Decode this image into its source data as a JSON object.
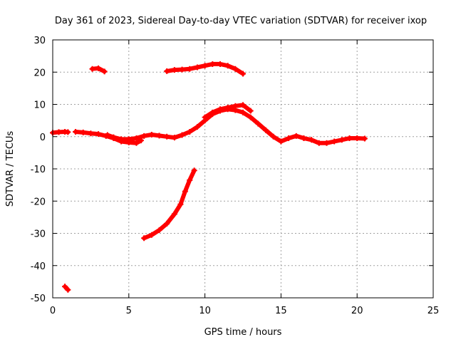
{
  "chart_data": {
    "type": "scatter",
    "title": "Day 361 of 2023, Sidereal Day-to-day VTEC variation (SDTVAR) for receiver ixop",
    "xlabel": "GPS time / hours",
    "ylabel": "SDTVAR / TECUs",
    "xlim": [
      0,
      25
    ],
    "ylim": [
      -50,
      30
    ],
    "x_ticks": [
      0,
      5,
      10,
      15,
      20,
      25
    ],
    "y_ticks": [
      -50,
      -40,
      -30,
      -20,
      -10,
      0,
      10,
      20,
      30
    ],
    "x_tick_labels": [
      "0",
      "5",
      "10",
      "15",
      "20",
      "25"
    ],
    "y_tick_labels": [
      "-50",
      "-40",
      "-30",
      "-20",
      "-10",
      "0",
      "10",
      "20",
      "30"
    ],
    "grid": true,
    "color": "#ff0000",
    "series": [
      {
        "name": "segment-1",
        "points": [
          [
            0.0,
            1.2
          ],
          [
            0.4,
            1.4
          ],
          [
            0.8,
            1.5
          ],
          [
            1.0,
            1.4
          ]
        ]
      },
      {
        "name": "segment-2",
        "points": [
          [
            1.5,
            1.5
          ],
          [
            2.0,
            1.3
          ],
          [
            2.5,
            1.0
          ],
          [
            3.0,
            0.8
          ],
          [
            3.5,
            0.2
          ],
          [
            4.0,
            -0.5
          ],
          [
            4.5,
            -1.5
          ],
          [
            5.0,
            -1.8
          ],
          [
            5.5,
            -2.0
          ],
          [
            5.8,
            -1.2
          ]
        ]
      },
      {
        "name": "segment-3",
        "points": [
          [
            3.6,
            0.5
          ],
          [
            4.0,
            -0.2
          ],
          [
            4.5,
            -0.8
          ],
          [
            5.0,
            -0.8
          ],
          [
            5.5,
            -0.5
          ],
          [
            6.0,
            0.2
          ],
          [
            6.5,
            0.6
          ],
          [
            7.0,
            0.3
          ],
          [
            7.5,
            0.0
          ],
          [
            8.0,
            -0.3
          ],
          [
            8.5,
            0.5
          ],
          [
            9.0,
            1.5
          ],
          [
            9.5,
            3.0
          ],
          [
            10.0,
            5.0
          ],
          [
            10.5,
            7.0
          ],
          [
            11.0,
            8.0
          ],
          [
            11.5,
            8.5
          ],
          [
            12.0,
            8.2
          ],
          [
            12.5,
            7.5
          ],
          [
            13.0,
            6.0
          ],
          [
            13.5,
            4.0
          ],
          [
            14.0,
            2.0
          ],
          [
            14.5,
            0.0
          ],
          [
            15.0,
            -1.5
          ],
          [
            15.5,
            -0.5
          ],
          [
            16.0,
            0.2
          ],
          [
            16.5,
            -0.5
          ],
          [
            17.0,
            -1.0
          ],
          [
            17.5,
            -2.0
          ],
          [
            18.0,
            -2.0
          ],
          [
            18.5,
            -1.5
          ],
          [
            19.0,
            -1.0
          ],
          [
            19.5,
            -0.5
          ],
          [
            20.0,
            -0.5
          ],
          [
            20.5,
            -0.6
          ]
        ]
      },
      {
        "name": "segment-4",
        "points": [
          [
            10.0,
            6.0
          ],
          [
            10.5,
            7.5
          ],
          [
            11.0,
            8.5
          ],
          [
            11.5,
            9.0
          ],
          [
            12.0,
            9.5
          ],
          [
            12.5,
            9.8
          ],
          [
            13.0,
            8.0
          ]
        ]
      },
      {
        "name": "segment-5",
        "points": [
          [
            2.6,
            21.0
          ],
          [
            3.0,
            21.2
          ],
          [
            3.4,
            20.2
          ]
        ]
      },
      {
        "name": "segment-6",
        "points": [
          [
            7.5,
            20.3
          ],
          [
            8.0,
            20.7
          ],
          [
            8.5,
            20.8
          ],
          [
            9.0,
            21.0
          ],
          [
            9.5,
            21.5
          ],
          [
            10.0,
            22.0
          ],
          [
            10.5,
            22.5
          ],
          [
            11.0,
            22.5
          ],
          [
            11.5,
            22.0
          ],
          [
            12.0,
            21.0
          ],
          [
            12.5,
            19.5
          ]
        ]
      },
      {
        "name": "segment-7",
        "points": [
          [
            6.0,
            -31.5
          ],
          [
            6.5,
            -30.5
          ],
          [
            7.0,
            -29.0
          ],
          [
            7.5,
            -27.0
          ],
          [
            8.0,
            -24.0
          ],
          [
            8.4,
            -21.0
          ],
          [
            8.7,
            -17.0
          ],
          [
            9.0,
            -13.5
          ],
          [
            9.3,
            -10.5
          ]
        ]
      },
      {
        "name": "segment-8",
        "points": [
          [
            0.8,
            -46.5
          ],
          [
            1.0,
            -47.5
          ]
        ]
      }
    ]
  }
}
